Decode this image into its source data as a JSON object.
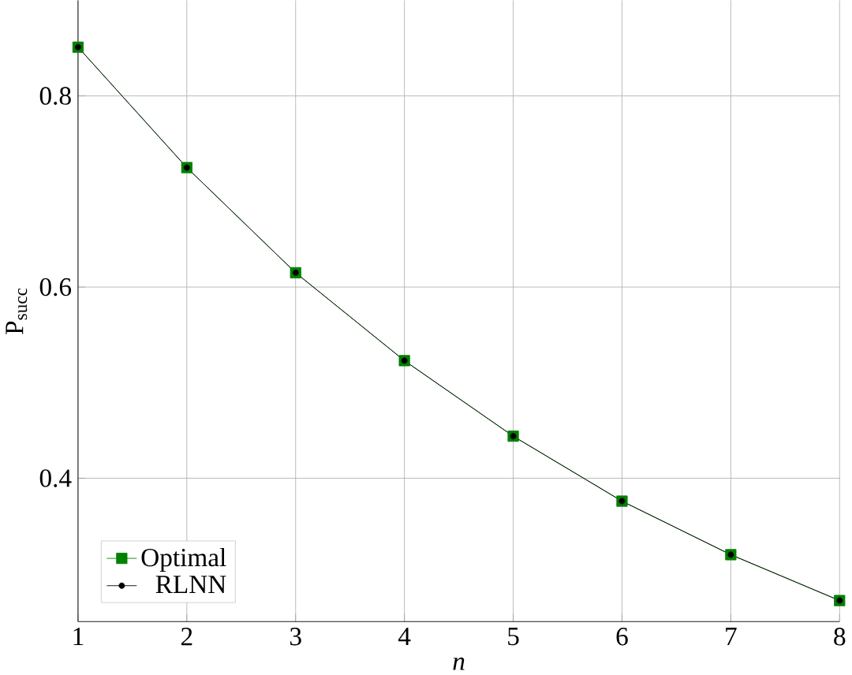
{
  "chart_data": {
    "type": "line",
    "xlabel": "n",
    "ylabel": "P$_{succ}$",
    "x": [
      1,
      2,
      3,
      4,
      5,
      6,
      7,
      8
    ],
    "series": [
      {
        "name": "Optimal",
        "color": "#008000",
        "marker": "square",
        "values": [
          0.851,
          0.725,
          0.615,
          0.523,
          0.444,
          0.376,
          0.32,
          0.272
        ]
      },
      {
        "name": "RLNN",
        "color": "#000000",
        "marker": "circle",
        "values": [
          0.851,
          0.725,
          0.615,
          0.523,
          0.444,
          0.376,
          0.32,
          0.272
        ]
      }
    ],
    "xlim": [
      1,
      8
    ],
    "ylim": [
      0.25,
      0.9
    ],
    "xticks": [
      1,
      2,
      3,
      4,
      5,
      6,
      7,
      8
    ],
    "yticks": [
      0.4,
      0.6,
      0.8
    ],
    "grid": true,
    "legend": "bottom left",
    "line_style": "solid"
  }
}
